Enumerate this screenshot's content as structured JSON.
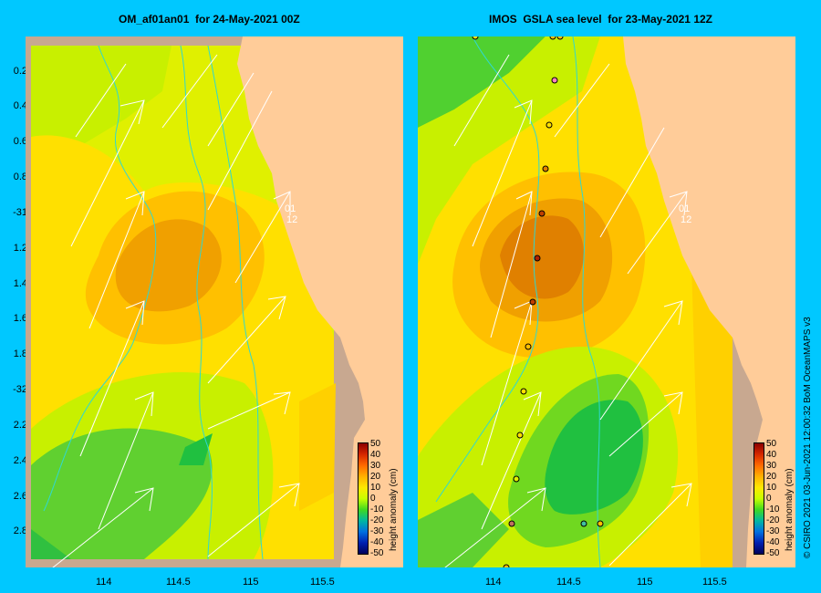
{
  "left_panel": {
    "title": "OM_af01an01  for 24-May-2021 00Z",
    "y_ticks": [
      "0.2",
      "0.4",
      "0.6",
      "0.8",
      "-31",
      "1.2",
      "1.4",
      "1.6",
      "1.8",
      "-32",
      "2.2",
      "2.4",
      "2.6",
      "2.8"
    ],
    "x_ticks": [
      "114",
      "114.5",
      "115",
      "115.5"
    ]
  },
  "right_panel": {
    "title": "IMOS  GSLA sea level  for 23-May-2021 12Z",
    "x_ticks": [
      "114",
      "114.5",
      "115",
      "115.5"
    ]
  },
  "colorbar": {
    "labels": [
      "50",
      "40",
      "30",
      "20",
      "10",
      "0",
      "-10",
      "-20",
      "-30",
      "-40",
      "-50"
    ],
    "title": "height anomaly  (cm)"
  },
  "map_labels": {
    "time_stub_a": "01",
    "time_stub_b": "12"
  },
  "copyright": "© CSIRO 2021   03-Jun-2021 12:00:32 BoM OceanMAPS v3",
  "colors": {
    "background": "#00c8ff",
    "land": "#ffcc99",
    "coast": "#c8a890"
  }
}
